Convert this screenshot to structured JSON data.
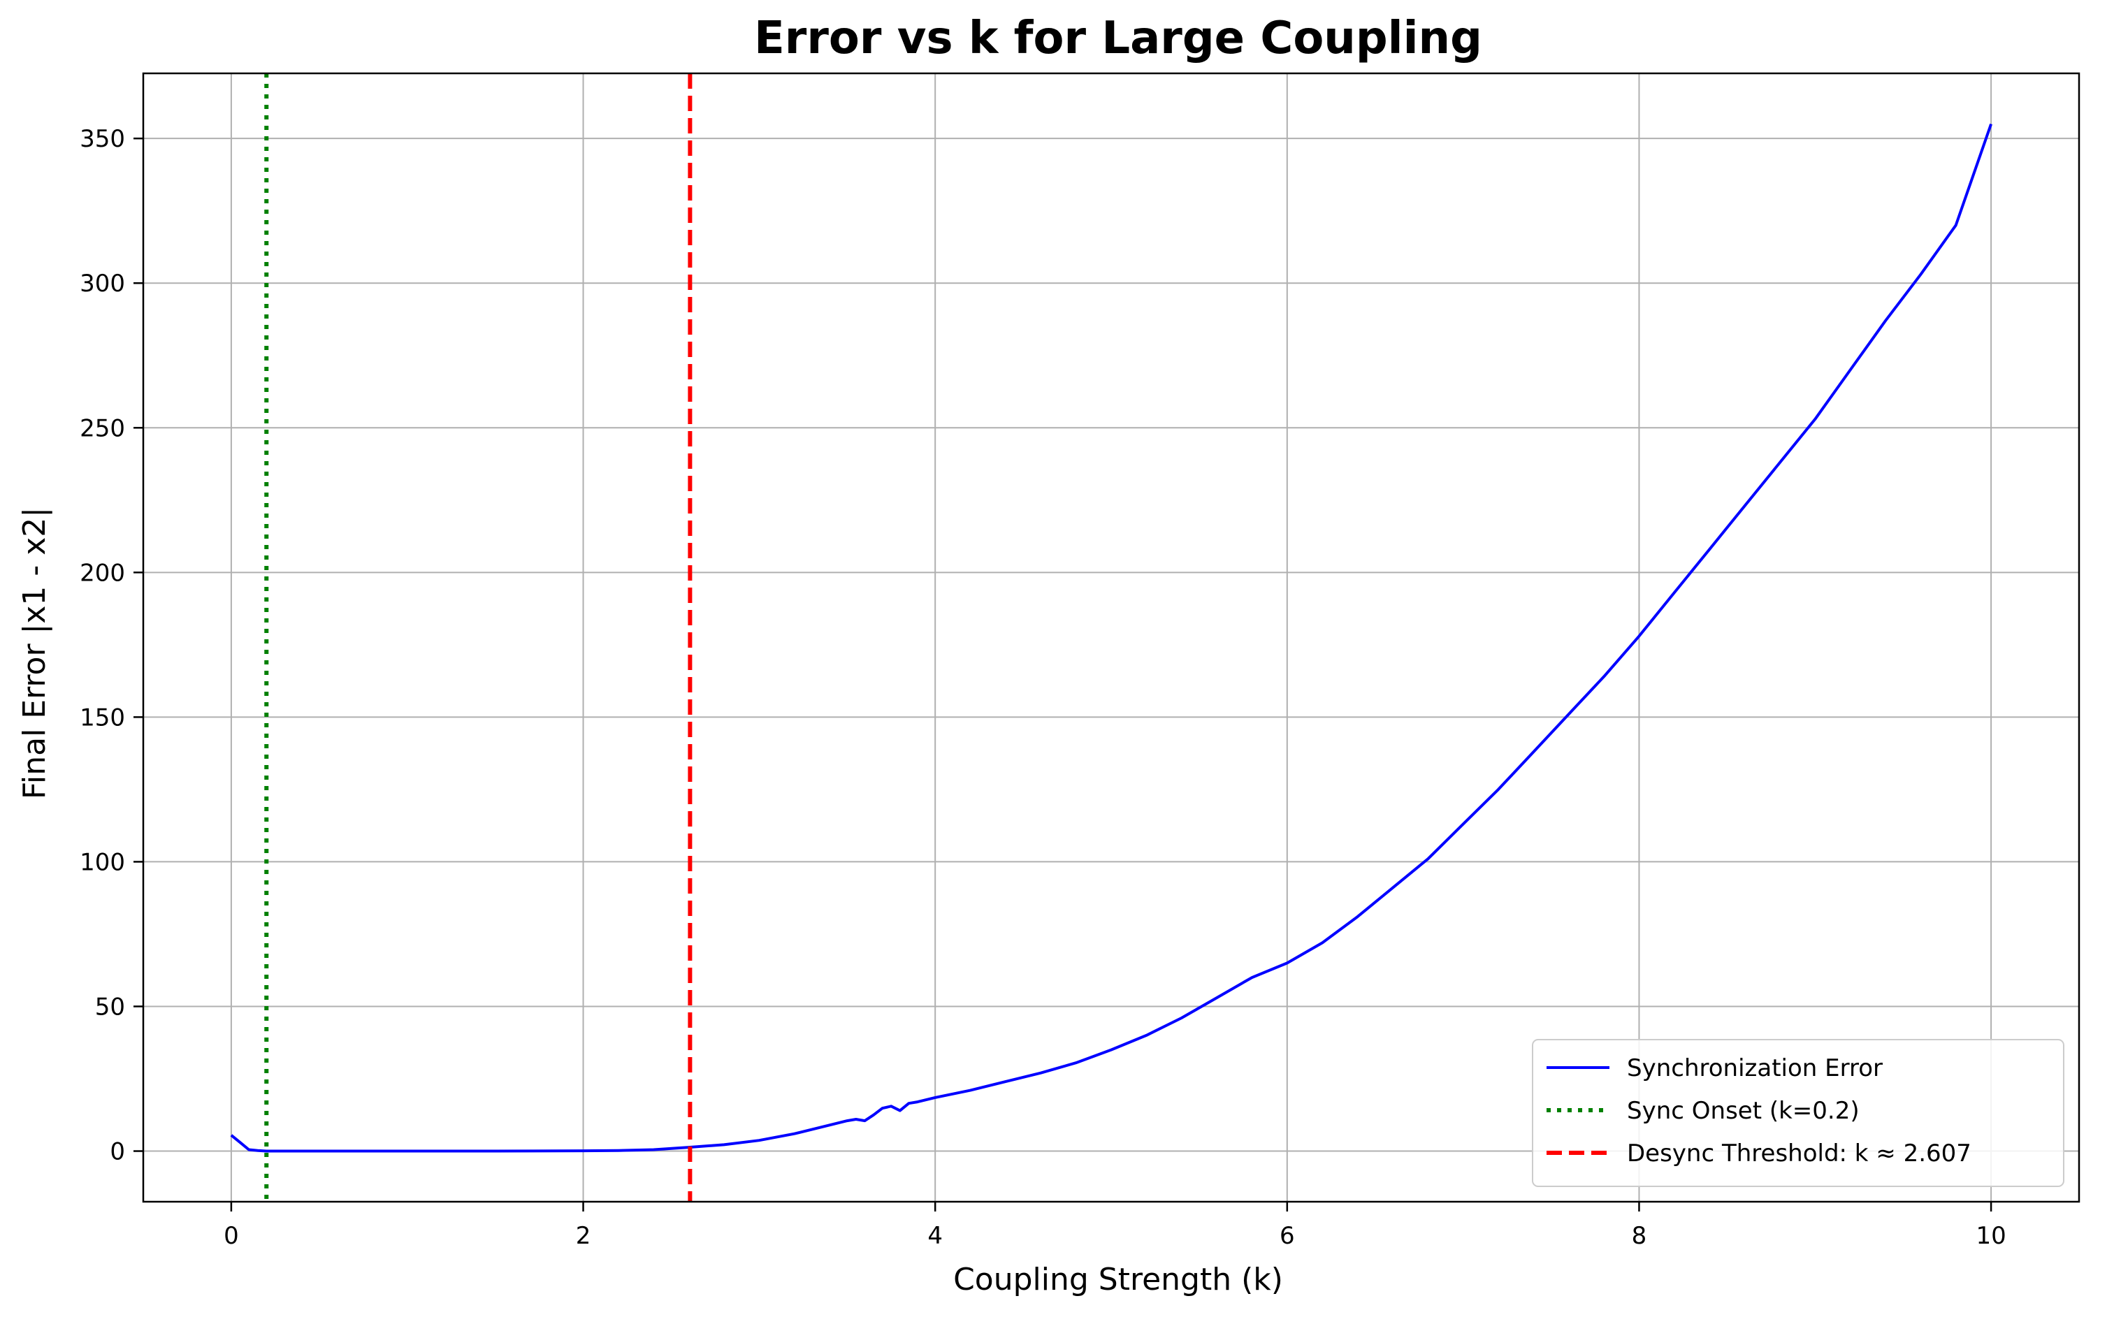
{
  "chart_data": {
    "type": "line",
    "title": "Error vs k for Large Coupling",
    "xlabel": "Coupling Strength (k)",
    "ylabel": "Final Error |x1 - x2|",
    "xlim": [
      -0.5,
      10.5
    ],
    "ylim": [
      -17.5,
      372.5
    ],
    "xticks": [
      0,
      2,
      4,
      6,
      8,
      10
    ],
    "yticks": [
      0,
      50,
      100,
      150,
      200,
      250,
      300,
      350
    ],
    "grid": true,
    "legend_position": "lower-right",
    "series": [
      {
        "name": "Synchronization Error",
        "color": "#0000ff",
        "style": "solid",
        "x": [
          0.0,
          0.05,
          0.1,
          0.15,
          0.2,
          0.3,
          0.5,
          1.0,
          1.5,
          2.0,
          2.2,
          2.4,
          2.6,
          2.8,
          3.0,
          3.2,
          3.4,
          3.5,
          3.55,
          3.6,
          3.65,
          3.7,
          3.75,
          3.8,
          3.85,
          3.9,
          4.0,
          4.2,
          4.4,
          4.6,
          4.8,
          5.0,
          5.2,
          5.4,
          5.6,
          5.8,
          6.0,
          6.2,
          6.4,
          6.6,
          6.8,
          7.0,
          7.2,
          7.4,
          7.6,
          7.8,
          8.0,
          8.2,
          8.4,
          8.6,
          8.8,
          9.0,
          9.2,
          9.4,
          9.6,
          9.8,
          10.0
        ],
        "y": [
          5.5,
          3.0,
          0.5,
          0.2,
          0.0,
          0.0,
          0.0,
          0.0,
          0.0,
          0.1,
          0.2,
          0.5,
          1.3,
          2.2,
          3.7,
          6.0,
          9.0,
          10.5,
          11.0,
          10.5,
          12.5,
          14.8,
          15.5,
          14.0,
          16.5,
          17.0,
          18.5,
          21.0,
          24.0,
          27.0,
          30.5,
          35.0,
          40.0,
          46.0,
          53.0,
          60.0,
          65.0,
          72.0,
          81.0,
          91.0,
          101.0,
          113.0,
          125.0,
          138.0,
          151.0,
          164.0,
          178.0,
          193.0,
          208.0,
          223.0,
          238.0,
          253.0,
          270.0,
          287.0,
          303.0,
          320.0,
          355.0
        ]
      },
      {
        "name": "Sync Onset (k=0.2)",
        "color": "#008000",
        "style": "dotted",
        "vline_x": 0.2
      },
      {
        "name": "Desync Threshold: k ≈ 2.607",
        "color": "#ff0000",
        "style": "dashed",
        "vline_x": 2.607
      }
    ]
  }
}
